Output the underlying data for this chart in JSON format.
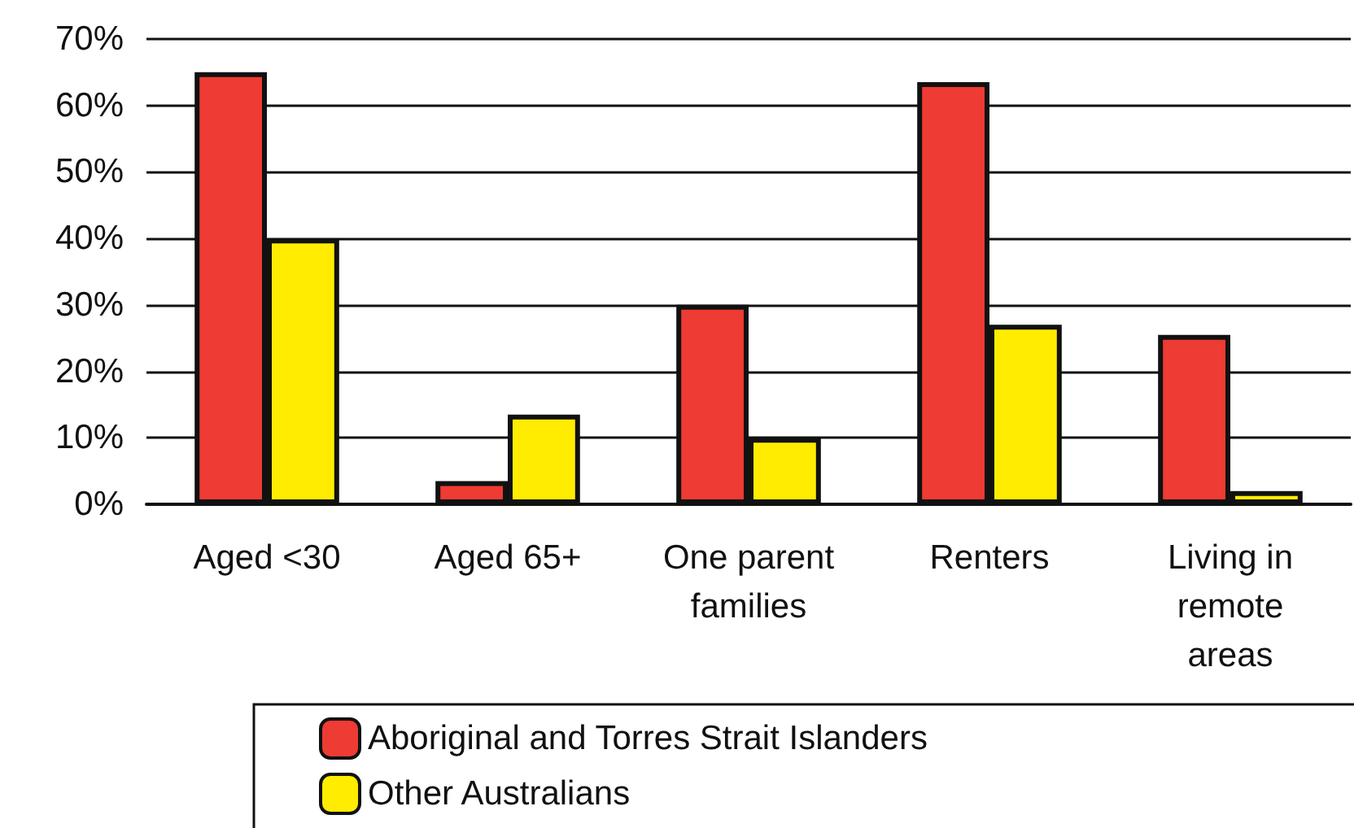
{
  "chart_data": {
    "type": "bar",
    "categories": [
      "Aged <30",
      "Aged 65+",
      "One parent\nfamilies",
      "Renters",
      "Living in\nremote\nareas"
    ],
    "series": [
      {
        "name": "Aboriginal and Torres Strait Islanders",
        "color": "#ee3b33",
        "values": [
          65,
          3.5,
          30,
          63.5,
          25.5
        ]
      },
      {
        "name": "Other Australians",
        "color": "#ffec00",
        "values": [
          40,
          13.5,
          10,
          27,
          2
        ]
      }
    ],
    "ylim": [
      0,
      70
    ],
    "yticks": [
      {
        "value": 0,
        "label": "0%"
      },
      {
        "value": 10,
        "label": "10%"
      },
      {
        "value": 20,
        "label": "20%"
      },
      {
        "value": 30,
        "label": "30%"
      },
      {
        "value": 40,
        "label": "40%"
      },
      {
        "value": 50,
        "label": "50%"
      },
      {
        "value": 60,
        "label": "60%"
      },
      {
        "value": 70,
        "label": "70%"
      }
    ],
    "grid": "y",
    "legend": "bottom"
  }
}
